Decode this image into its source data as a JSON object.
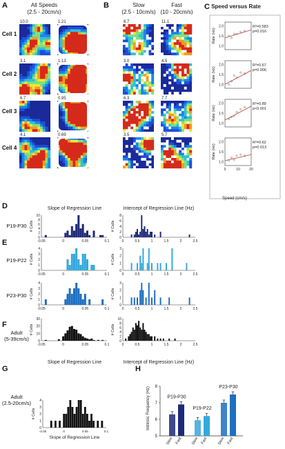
{
  "panel_letters": [
    "A",
    "B",
    "C",
    "D",
    "E",
    "F",
    "G",
    "H"
  ],
  "panel_a": {
    "heading": [
      "All Speeds",
      "(2.5 - 20cm/s)"
    ],
    "row_labels": [
      "Cell 1",
      "Cell 2",
      "Cell 3",
      "Cell 4"
    ],
    "rate_values": [
      [
        "10.0",
        "1.21"
      ],
      [
        "3.1",
        "1.13"
      ],
      [
        "6.7",
        "0.95"
      ],
      [
        "4.1",
        "0.69"
      ]
    ]
  },
  "panel_b": {
    "slow_heading": [
      "Slow",
      "(2.5 - 10cm/s)"
    ],
    "fast_heading": [
      "Fast",
      "(10 - 20cm/s)"
    ],
    "rate_values": [
      [
        "8.7",
        "11.1"
      ],
      [
        "3.0",
        "4.5"
      ],
      [
        "6.3",
        "7.7"
      ],
      [
        "3.5",
        "5.7"
      ]
    ]
  },
  "panel_c": {
    "title": "Speed versus Rate",
    "ylabel": "Rate (Hz)",
    "xlabel": "Speed (cm/s)",
    "x_ticks": [
      "0",
      "10",
      "20"
    ],
    "rows": [
      {
        "y_ticks": [
          "1.0",
          "1.5",
          "2.0"
        ],
        "stats": [
          "R²=0.583",
          "p=0.016"
        ]
      },
      {
        "y_ticks": [
          "1.0",
          "1.5",
          "2.0"
        ],
        "stats": [
          "R²=0.67",
          "p=0.006"
        ]
      },
      {
        "y_ticks": [
          "1.0",
          "1.5",
          "2.0"
        ],
        "stats": [
          "R²=0.89",
          "p<0.001"
        ]
      },
      {
        "y_ticks": [
          "1.0",
          "1.5",
          "2.0"
        ],
        "stats": [
          "R²=0.62",
          "p=0.013"
        ]
      }
    ]
  },
  "histograms": {
    "col_titles": [
      "Slope of Regression Line",
      "Intercept of Regression Line (Hz)"
    ],
    "ylabel": "# Cells",
    "slope_xticks": [
      "-0.05",
      "0",
      "0.05",
      "0.1"
    ],
    "intercept_xticks": [
      "0",
      "0.5",
      "1",
      "1.5",
      "2",
      "2.5"
    ],
    "rows": [
      {
        "label": [
          "P19-P30"
        ],
        "slope_yticks": [
          "0",
          "2",
          "4",
          "6",
          "8",
          "10"
        ],
        "int_yticks": [
          "0",
          "2",
          "4",
          "6",
          "8"
        ]
      },
      {
        "label": [
          "P19-P22"
        ],
        "slope_yticks": [
          "0",
          "1",
          "2",
          "3",
          "4"
        ],
        "int_yticks": [
          "0",
          "1",
          "2",
          "3"
        ]
      },
      {
        "label": [
          "P23-P30"
        ],
        "slope_yticks": [
          "0",
          "1",
          "2",
          "3",
          "4"
        ],
        "int_yticks": [
          "0",
          "1",
          "2",
          "3"
        ]
      },
      {
        "label": [
          "Adult",
          "(5-39cm/s)"
        ],
        "slope_yticks": [
          "0",
          "10",
          "20",
          "30"
        ],
        "int_yticks": [
          "0",
          "2",
          "4",
          "6",
          "8",
          "10"
        ]
      }
    ],
    "bottom_xlabels": [
      "Slope of Regression Line",
      "Intercept of Regression Line (Hz)"
    ]
  },
  "panel_g": {
    "label": [
      "Adult",
      "(2.5-20cm/s)"
    ],
    "ylabel": "# Cells",
    "xlabel": "Slope of Regression Line",
    "y_ticks": [
      "0",
      "1",
      "2",
      "3",
      "4"
    ],
    "x_ticks": [
      "-0.05",
      "0",
      "0.05",
      "0.1"
    ]
  },
  "panel_h": {
    "ylabel": "Intrinsic Frequency (Hz)",
    "y_ticks": [
      "5",
      "6",
      "7",
      "8"
    ],
    "group_labels": [
      "P19-P30",
      "P19-P22",
      "P23-P30"
    ],
    "bar_labels": [
      "Slow",
      "Fast"
    ]
  },
  "colors": {
    "dark_blue": "#1e2a78",
    "light_blue": "#35a8db",
    "mid_blue": "#1d6fc0",
    "black": "#111111",
    "red": "#c0392b"
  },
  "chart_data": [
    {
      "type": "bar",
      "title": "",
      "subtitle": "P19-P30",
      "xlabel": "Slope of Regression Line",
      "ylabel": "# Cells",
      "x": [
        -0.04,
        0.005,
        0.01,
        0.015,
        0.02,
        0.025,
        0.03,
        0.035,
        0.04,
        0.045,
        0.05,
        0.055,
        0.06,
        0.07,
        0.085,
        0.09
      ],
      "values": [
        1,
        2,
        3,
        1,
        5,
        3,
        6,
        10,
        4,
        6,
        2,
        3,
        1,
        3,
        1,
        1
      ],
      "xlim": [
        -0.05,
        0.1
      ],
      "ylim": [
        0,
        10
      ]
    },
    {
      "type": "bar",
      "title": "",
      "subtitle": "P19-P30",
      "xlabel": "Intercept of Regression Line (Hz)",
      "ylabel": "# Cells",
      "x": [
        0.3,
        0.4,
        0.45,
        0.5,
        0.55,
        0.6,
        0.65,
        0.7,
        0.75,
        0.8,
        0.85,
        0.9,
        0.95,
        1.0,
        1.1,
        1.3,
        2.3
      ],
      "values": [
        1,
        1,
        2,
        3,
        1,
        2,
        8,
        3,
        4,
        2,
        3,
        1,
        2,
        2,
        1,
        2,
        1
      ],
      "xlim": [
        0,
        2.5
      ],
      "ylim": [
        0,
        8
      ]
    },
    {
      "type": "bar",
      "title": "",
      "subtitle": "P19-P22",
      "xlabel": "Slope of Regression Line",
      "ylabel": "# Cells",
      "x": [
        0.01,
        0.015,
        0.02,
        0.025,
        0.03,
        0.035,
        0.04,
        0.045,
        0.05,
        0.055,
        0.065,
        0.07
      ],
      "values": [
        2,
        1,
        3,
        3,
        4,
        2,
        1,
        3,
        3,
        2,
        1,
        1
      ],
      "xlim": [
        -0.05,
        0.1
      ],
      "ylim": [
        0,
        4
      ]
    },
    {
      "type": "bar",
      "title": "",
      "subtitle": "P19-P22",
      "xlabel": "Intercept of Regression Line (Hz)",
      "ylabel": "# Cells",
      "x": [
        0.3,
        0.5,
        0.6,
        0.65,
        0.7,
        0.85,
        0.9,
        1.0,
        1.2,
        1.3,
        1.5,
        1.7,
        2.2
      ],
      "values": [
        1,
        1,
        2,
        1,
        3,
        1,
        3,
        1,
        1,
        1,
        1,
        3,
        1
      ],
      "xlim": [
        0,
        2.5
      ],
      "ylim": [
        0,
        3
      ]
    },
    {
      "type": "bar",
      "title": "",
      "subtitle": "P23-P30",
      "xlabel": "Slope of Regression Line",
      "ylabel": "# Cells",
      "x": [
        -0.04,
        0.005,
        0.01,
        0.015,
        0.02,
        0.025,
        0.03,
        0.035,
        0.04,
        0.045,
        0.05,
        0.06,
        0.09
      ],
      "values": [
        1,
        1,
        2,
        3,
        2,
        3,
        4,
        3,
        2,
        1,
        2,
        1,
        1
      ],
      "xlim": [
        -0.05,
        0.1
      ],
      "ylim": [
        0,
        4
      ]
    },
    {
      "type": "bar",
      "title": "",
      "subtitle": "P23-P30",
      "xlabel": "Intercept of Regression Line (Hz)",
      "ylabel": "# Cells",
      "x": [
        0.3,
        0.4,
        0.5,
        0.6,
        0.65,
        0.7,
        0.8,
        0.9,
        1.0,
        1.1,
        1.3,
        1.6,
        2.3
      ],
      "values": [
        1,
        1,
        1,
        2,
        3,
        2,
        1,
        3,
        1,
        2,
        1,
        1,
        1
      ],
      "xlim": [
        0,
        2.5
      ],
      "ylim": [
        0,
        3
      ]
    },
    {
      "type": "bar",
      "title": "",
      "subtitle": "Adult (5-39cm/s)",
      "xlabel": "Slope of Regression Line",
      "ylabel": "# Cells",
      "x": [
        -0.04,
        -0.01,
        0.0,
        0.005,
        0.01,
        0.015,
        0.02,
        0.025,
        0.03,
        0.035,
        0.04,
        0.045,
        0.05,
        0.055,
        0.06,
        0.065,
        0.07,
        0.08,
        0.09
      ],
      "values": [
        1,
        2,
        6,
        10,
        14,
        19,
        20,
        16,
        15,
        10,
        9,
        6,
        4,
        3,
        2,
        3,
        1,
        1,
        1
      ],
      "xlim": [
        -0.05,
        0.1
      ],
      "ylim": [
        0,
        30
      ]
    },
    {
      "type": "bar",
      "title": "",
      "subtitle": "Adult (5-39cm/s)",
      "xlabel": "Intercept of Regression Line (Hz)",
      "ylabel": "# Cells",
      "x": [
        0.1,
        0.2,
        0.25,
        0.3,
        0.35,
        0.4,
        0.45,
        0.5,
        0.55,
        0.6,
        0.65,
        0.7,
        0.75,
        0.8,
        0.85,
        0.9,
        0.95,
        1.0,
        1.1,
        1.2,
        1.3,
        1.4,
        1.6,
        1.8
      ],
      "values": [
        1,
        2,
        3,
        4,
        6,
        5,
        8,
        7,
        9,
        6,
        5,
        8,
        5,
        4,
        3,
        3,
        2,
        2,
        2,
        1,
        1,
        1,
        1,
        1
      ],
      "xlim": [
        0,
        2.5
      ],
      "ylim": [
        0,
        10
      ]
    },
    {
      "type": "bar",
      "title": "",
      "subtitle": "Adult (2.5-20cm/s)",
      "xlabel": "Slope of Regression Line",
      "ylabel": "# Cells",
      "x": [
        -0.03,
        -0.02,
        -0.01,
        0.0,
        0.005,
        0.01,
        0.015,
        0.02,
        0.025,
        0.03,
        0.035,
        0.04,
        0.045,
        0.05,
        0.055,
        0.06,
        0.065,
        0.07,
        0.08,
        0.09
      ],
      "values": [
        1,
        1,
        1,
        2,
        2,
        3,
        4,
        3,
        2,
        3,
        4,
        4,
        2,
        3,
        2,
        1,
        2,
        1,
        1,
        1
      ],
      "xlim": [
        -0.05,
        0.1
      ],
      "ylim": [
        0,
        4
      ]
    },
    {
      "type": "bar",
      "title": "",
      "ylabel": "Intrinsic Frequency (Hz)",
      "ylim": [
        5,
        8
      ],
      "categories": [
        "Slow",
        "Fast"
      ],
      "series": [
        {
          "name": "P19-P30",
          "values": [
            6.3,
            6.9
          ]
        },
        {
          "name": "P19-P22",
          "values": [
            5.95,
            6.2
          ]
        },
        {
          "name": "P23-P30",
          "values": [
            7.0,
            7.5
          ]
        }
      ]
    },
    {
      "type": "scatter",
      "title": "Speed versus Rate",
      "xlabel": "Speed (cm/s)",
      "ylabel": "Rate (Hz)",
      "xlim": [
        0,
        20
      ],
      "ylim": [
        0.8,
        2.2
      ],
      "series": [
        {
          "x": [
            3,
            5,
            7,
            9,
            12,
            15
          ],
          "y": [
            1.5,
            1.4,
            1.6,
            1.6,
            1.7,
            1.75
          ],
          "fit": [
            1.4,
            1.8
          ]
        },
        {
          "x": [
            3,
            5,
            7,
            9,
            12,
            15
          ],
          "y": [
            1.0,
            1.15,
            1.45,
            1.35,
            1.6,
            1.55
          ],
          "fit": [
            1.0,
            1.7
          ]
        },
        {
          "x": [
            3,
            5,
            7,
            9,
            12,
            15
          ],
          "y": [
            1.2,
            1.3,
            1.35,
            1.55,
            1.7,
            1.8
          ],
          "fit": [
            1.15,
            1.85
          ]
        },
        {
          "x": [
            3,
            5,
            7,
            9,
            12,
            15
          ],
          "y": [
            1.05,
            1.2,
            1.1,
            1.3,
            1.35,
            1.3
          ],
          "fit": [
            1.05,
            1.35
          ]
        }
      ]
    }
  ]
}
